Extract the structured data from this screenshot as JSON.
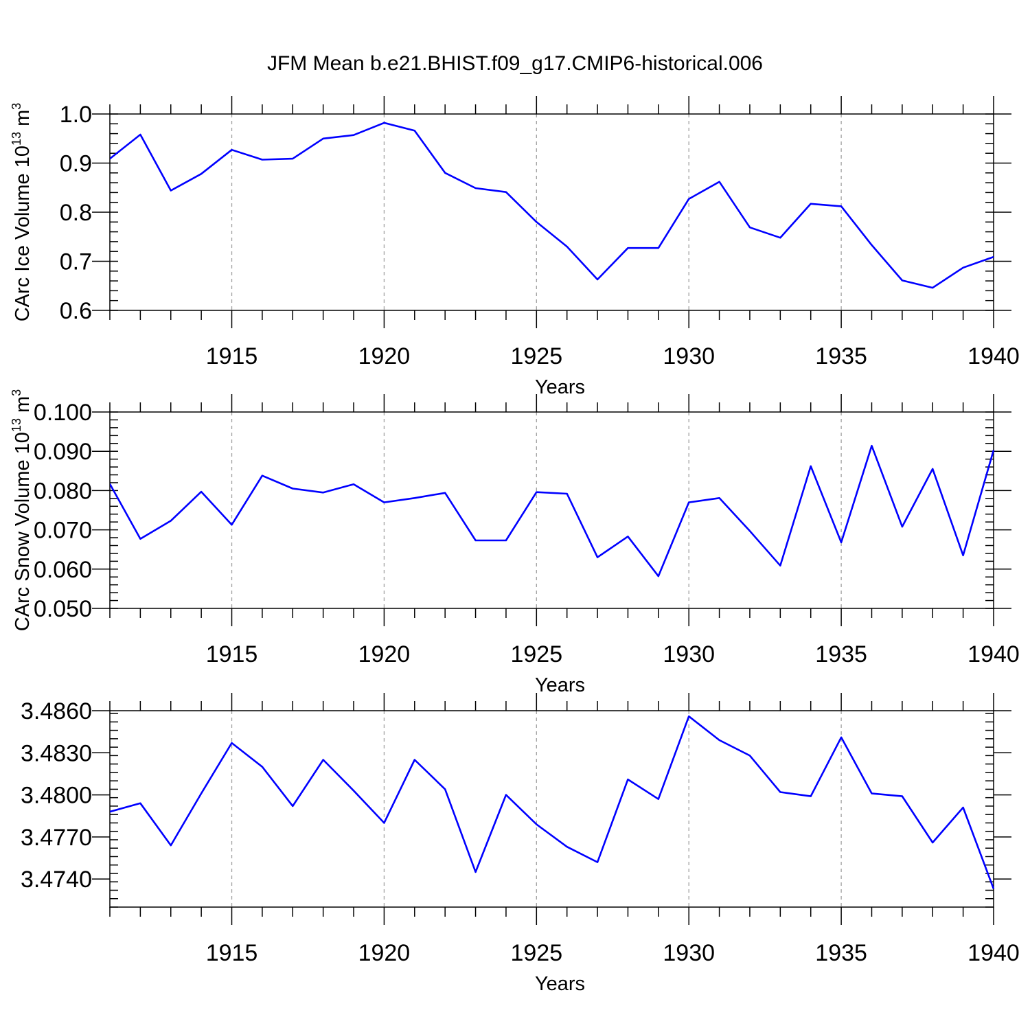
{
  "title": "JFM Mean b.e21.BHIST.f09_g17.CMIP6-historical.006",
  "colors": {
    "series": "#0000ff",
    "axis": "#000000",
    "grid": "#a0a0a0"
  },
  "chart_data": [
    {
      "type": "line",
      "ylabel": "CArc Ice Volume 10",
      "ylabel_sup_exp": "13",
      "ylabel_unit": " m",
      "ylabel_unit_sup": "3",
      "xlabel": "Years",
      "xlim": [
        1911,
        1940
      ],
      "ylim": [
        0.6,
        1.0
      ],
      "x_ticks": [
        1915,
        1920,
        1925,
        1930,
        1935,
        1940
      ],
      "y_ticks": [
        0.6,
        0.7,
        0.8,
        0.9,
        1.0
      ],
      "y_tick_labels": [
        "0.6",
        "0.7",
        "0.8",
        "0.9",
        "1.0"
      ],
      "grid_x": true,
      "x": [
        1911,
        1912,
        1913,
        1914,
        1915,
        1916,
        1917,
        1918,
        1919,
        1920,
        1921,
        1922,
        1923,
        1924,
        1925,
        1926,
        1927,
        1928,
        1929,
        1930,
        1931,
        1932,
        1933,
        1934,
        1935,
        1936,
        1937,
        1938,
        1939,
        1940
      ],
      "y": [
        0.909,
        0.958,
        0.844,
        0.878,
        0.927,
        0.907,
        0.909,
        0.95,
        0.957,
        0.982,
        0.966,
        0.88,
        0.849,
        0.841,
        0.78,
        0.73,
        0.663,
        0.727,
        0.727,
        0.827,
        0.862,
        0.769,
        0.748,
        0.817,
        0.812,
        0.733,
        0.661,
        0.646,
        0.687,
        0.709
      ]
    },
    {
      "type": "line",
      "ylabel": "CArc Snow Volume 10",
      "ylabel_sup_exp": "13",
      "ylabel_unit": " m",
      "ylabel_unit_sup": "3",
      "xlabel": "Years",
      "xlim": [
        1911,
        1940
      ],
      "ylim": [
        0.05,
        0.1
      ],
      "x_ticks": [
        1915,
        1920,
        1925,
        1930,
        1935,
        1940
      ],
      "y_ticks": [
        0.05,
        0.06,
        0.07,
        0.08,
        0.09,
        0.1
      ],
      "y_tick_labels": [
        "0.050",
        "0.060",
        "0.070",
        "0.080",
        "0.090",
        "0.100"
      ],
      "grid_x": true,
      "x": [
        1911,
        1912,
        1913,
        1914,
        1915,
        1916,
        1917,
        1918,
        1919,
        1920,
        1921,
        1922,
        1923,
        1924,
        1925,
        1926,
        1927,
        1928,
        1929,
        1930,
        1931,
        1932,
        1933,
        1934,
        1935,
        1936,
        1937,
        1938,
        1939,
        1940
      ],
      "y": [
        0.0817,
        0.0677,
        0.0723,
        0.0797,
        0.0713,
        0.0838,
        0.0805,
        0.0795,
        0.0816,
        0.077,
        0.0781,
        0.0794,
        0.0673,
        0.0673,
        0.0796,
        0.0792,
        0.063,
        0.0683,
        0.0582,
        0.077,
        0.0781,
        0.0697,
        0.0609,
        0.0862,
        0.0668,
        0.0914,
        0.0708,
        0.0855,
        0.0635,
        0.0903
      ]
    },
    {
      "type": "line",
      "ylabel": "",
      "xlabel": "Years",
      "xlim": [
        1911,
        1940
      ],
      "ylim": [
        3.472,
        3.486
      ],
      "x_ticks": [
        1915,
        1920,
        1925,
        1930,
        1935,
        1940
      ],
      "y_ticks": [
        3.474,
        3.477,
        3.48,
        3.483,
        3.486
      ],
      "y_tick_labels": [
        "3.4740",
        "3.4770",
        "3.4800",
        "3.4830",
        "3.4860"
      ],
      "grid_x": true,
      "x": [
        1911,
        1912,
        1913,
        1914,
        1915,
        1916,
        1917,
        1918,
        1919,
        1920,
        1921,
        1922,
        1923,
        1924,
        1925,
        1926,
        1927,
        1928,
        1929,
        1930,
        1931,
        1932,
        1933,
        1934,
        1935,
        1936,
        1937,
        1938,
        1939,
        1940
      ],
      "y": [
        3.4788,
        3.4794,
        3.4764,
        3.4801,
        3.4837,
        3.482,
        3.4792,
        3.4825,
        3.4803,
        3.478,
        3.4825,
        3.4804,
        3.4745,
        3.48,
        3.4779,
        3.4763,
        3.4752,
        3.4811,
        3.4797,
        3.4856,
        3.4839,
        3.4828,
        3.4802,
        3.4799,
        3.4841,
        3.4801,
        3.4799,
        3.4766,
        3.4791,
        3.4733
      ]
    }
  ]
}
